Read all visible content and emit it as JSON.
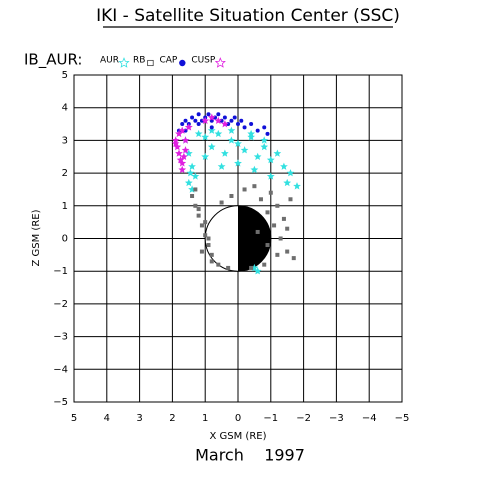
{
  "chart_data": {
    "type": "scatter",
    "title": "IKI - Satellite Situation Center (SSC)",
    "subtitle": "IB_AUR:",
    "footer": "March    1997",
    "xlabel": "X GSM (RE)",
    "ylabel": "Z GSM (RE)",
    "xlim": [
      5,
      -5
    ],
    "ylim": [
      -5,
      5
    ],
    "xticks": [
      5,
      4,
      3,
      2,
      1,
      0,
      {
        "value": -1,
        "label": "−1"
      },
      {
        "value": -2,
        "label": "−2"
      },
      {
        "value": -3,
        "label": "−3"
      },
      {
        "value": -4,
        "label": "−4"
      },
      {
        "value": -5,
        "label": "−5"
      }
    ],
    "yticks": [
      5,
      4,
      3,
      2,
      1,
      0,
      {
        "value": -1,
        "label": "−1"
      },
      {
        "value": -2,
        "label": "−2"
      },
      {
        "value": -3,
        "label": "−3"
      },
      {
        "value": -4,
        "label": "−4"
      },
      {
        "value": -5,
        "label": "−5"
      }
    ],
    "grid": true,
    "series": [
      {
        "name": "AUR",
        "color": "#33e0e0",
        "marker": "star",
        "x": [
          1.6,
          1.5,
          1.4,
          1.3,
          1.2,
          1.0,
          0.8,
          0.6,
          0.4,
          0.2,
          0.0,
          -0.2,
          -0.4,
          -0.6,
          -0.8,
          -1.0,
          -1.2,
          -1.4,
          -1.6,
          -1.8,
          1.5,
          1.4,
          1.45,
          1.0,
          0.5,
          0.0,
          -0.5,
          -1.0,
          -1.5,
          0.8,
          0.2,
          -0.4,
          -0.8,
          -0.6,
          -0.5
        ],
        "values": [
          3.0,
          2.6,
          2.2,
          1.9,
          3.2,
          3.1,
          2.8,
          3.2,
          2.6,
          3.0,
          2.9,
          2.7,
          3.1,
          2.5,
          2.8,
          2.4,
          2.6,
          2.2,
          2.0,
          1.6,
          1.7,
          1.5,
          2.0,
          2.5,
          2.2,
          2.3,
          2.1,
          1.9,
          1.7,
          3.3,
          3.3,
          3.2,
          3.0,
          -1.0,
          -0.9
        ]
      },
      {
        "name": "RB",
        "color": "#6e6e6e",
        "marker": "square",
        "x": [
          1.4,
          1.3,
          1.2,
          1.1,
          1.0,
          0.9,
          0.8,
          1.3,
          1.2,
          1.0,
          0.9,
          1.1,
          0.8,
          0.6,
          0.3,
          -0.5,
          -0.7,
          -0.9,
          -1.1,
          -1.3,
          -1.5,
          -1.7,
          -0.8,
          -1.0,
          -1.2,
          -1.4,
          -1.6,
          -0.6,
          -0.9,
          -1.2,
          -1.5,
          -0.4,
          0.2,
          0.5,
          -0.2
        ],
        "values": [
          1.3,
          1.0,
          0.7,
          0.4,
          0.1,
          -0.2,
          -0.5,
          1.5,
          0.9,
          0.5,
          0.0,
          -0.4,
          -0.7,
          -0.8,
          -0.9,
          1.6,
          1.2,
          0.8,
          0.4,
          0.0,
          -0.4,
          -0.6,
          -0.8,
          1.4,
          1.0,
          0.6,
          1.2,
          0.2,
          -0.2,
          -0.5,
          0.3,
          -0.9,
          1.3,
          1.1,
          1.5
        ]
      },
      {
        "name": "CAP",
        "color": "#1010d8",
        "marker": "dot",
        "x": [
          1.8,
          1.7,
          1.6,
          1.5,
          1.4,
          1.3,
          1.2,
          1.1,
          1.0,
          0.9,
          0.8,
          0.7,
          0.6,
          0.5,
          0.4,
          0.3,
          0.2,
          0.1,
          0.0,
          -0.1,
          -0.2,
          -0.4,
          -0.6,
          -0.8,
          -0.9,
          1.6,
          1.2,
          0.8
        ],
        "values": [
          3.3,
          3.5,
          3.6,
          3.5,
          3.7,
          3.6,
          3.8,
          3.6,
          3.7,
          3.8,
          3.6,
          3.7,
          3.8,
          3.6,
          3.7,
          3.5,
          3.6,
          3.7,
          3.5,
          3.6,
          3.4,
          3.5,
          3.3,
          3.4,
          3.2,
          3.3,
          3.5,
          3.4
        ]
      },
      {
        "name": "CUSP",
        "color": "#e020e0",
        "marker": "star",
        "x": [
          1.9,
          1.85,
          1.8,
          1.75,
          1.7,
          1.65,
          1.6,
          1.8,
          1.7,
          1.6,
          1.9,
          1.7,
          1.5,
          1.0,
          0.8,
          0.6,
          0.4
        ],
        "values": [
          3.0,
          2.8,
          2.6,
          2.4,
          2.3,
          2.5,
          2.7,
          3.2,
          3.3,
          3.0,
          2.9,
          2.1,
          3.4,
          3.6,
          3.7,
          3.6,
          3.5
        ]
      }
    ]
  }
}
